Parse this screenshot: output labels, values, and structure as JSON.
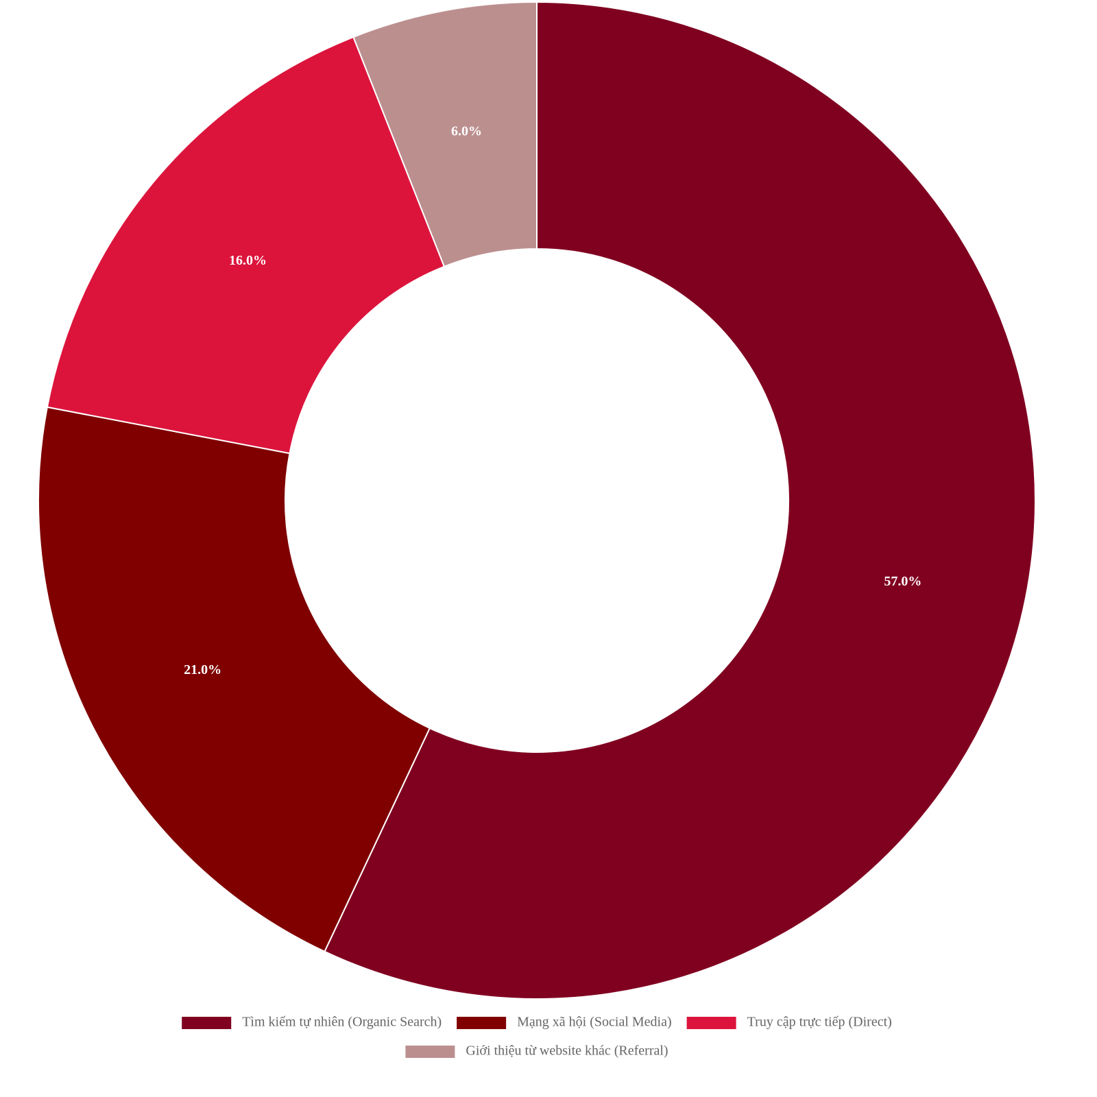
{
  "chart_data": {
    "type": "pie",
    "categories": [
      "Tìm kiếm tự nhiên (Organic Search)",
      "Mạng xã hội (Social Media)",
      "Truy cập trực tiếp (Direct)",
      "Giới thiệu từ website khác (Referral)"
    ],
    "values": [
      57,
      21,
      16,
      6
    ],
    "value_labels": [
      "57.0%",
      "21.0%",
      "16.0%",
      "6.0%"
    ],
    "colors": [
      "#800020",
      "#800000",
      "#DC143C",
      "#BC8F8F"
    ],
    "legend": "bottom"
  }
}
